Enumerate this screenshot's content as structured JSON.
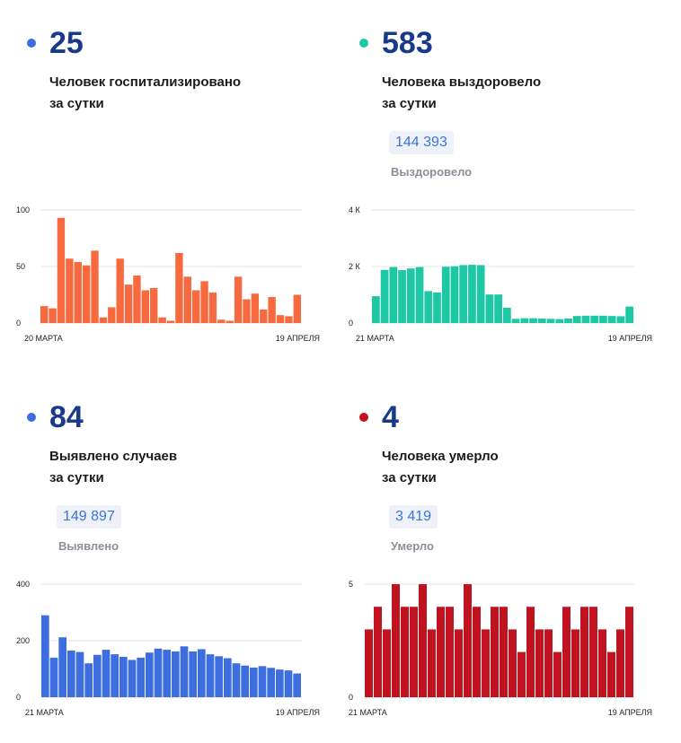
{
  "panels": {
    "hosp": {
      "number": "25",
      "desc_line1": "Человек госпитализировано",
      "desc_line2": "за сутки",
      "dot_color": "#3d6ee0"
    },
    "recov": {
      "number": "583",
      "desc_line1": "Человека выздоровело",
      "desc_line2": "за сутки",
      "total": "144 393",
      "total_label": "Выздоровело",
      "dot_color": "#1ec8a5"
    },
    "cases": {
      "number": "84",
      "desc_line1": "Выявлено случаев",
      "desc_line2": "за сутки",
      "total": "149 897",
      "total_label": "Выявлено",
      "dot_color": "#3d6ee0"
    },
    "deaths": {
      "number": "4",
      "desc_line1": "Человека умерло",
      "desc_line2": "за сутки",
      "total": "3 419",
      "total_label": "Умерло",
      "dot_color": "#c0121f"
    }
  },
  "chart_data": [
    {
      "id": "hosp",
      "type": "bar",
      "color": "#f76a3f",
      "ylim": [
        0,
        100
      ],
      "yticks": [
        "0",
        "50",
        "100"
      ],
      "ytick_values": [
        0,
        50,
        100
      ],
      "x_start": "20 МАРТА",
      "x_end": "19 АПРЕЛЯ",
      "values": [
        15,
        13,
        93,
        57,
        54,
        51,
        64,
        5,
        14,
        57,
        34,
        42,
        29,
        31,
        5,
        2,
        62,
        41,
        29,
        37,
        27,
        3,
        2,
        41,
        21,
        26,
        12,
        23,
        7,
        6,
        25
      ]
    },
    {
      "id": "recov",
      "type": "bar",
      "color": "#1ec8a5",
      "ylim": [
        0,
        4000
      ],
      "yticks": [
        "0",
        "2 К",
        "4 К"
      ],
      "ytick_values": [
        0,
        2000,
        4000
      ],
      "x_start": "21 МАРТА",
      "x_end": "19 АПРЕЛЯ",
      "values": [
        950,
        1880,
        1980,
        1870,
        1930,
        1980,
        1130,
        1080,
        1990,
        2010,
        2050,
        2060,
        2050,
        1010,
        1010,
        540,
        150,
        170,
        170,
        160,
        150,
        140,
        160,
        250,
        260,
        260,
        260,
        250,
        240,
        583
      ]
    },
    {
      "id": "cases",
      "type": "bar",
      "color": "#3d6ee0",
      "ylim": [
        0,
        400
      ],
      "yticks": [
        "0",
        "200",
        "400"
      ],
      "ytick_values": [
        0,
        200,
        400
      ],
      "x_start": "21 МАРТА",
      "x_end": "19 АПРЕЛЯ",
      "values": [
        290,
        140,
        212,
        165,
        160,
        120,
        150,
        168,
        152,
        143,
        132,
        140,
        158,
        172,
        168,
        162,
        180,
        162,
        170,
        152,
        145,
        138,
        120,
        112,
        105,
        110,
        104,
        98,
        95,
        84
      ]
    },
    {
      "id": "deaths",
      "type": "bar",
      "color": "#c0121f",
      "ylim": [
        0,
        5
      ],
      "yticks": [
        "0",
        "5"
      ],
      "ytick_values": [
        0,
        5
      ],
      "x_start": "21 МАРТА",
      "x_end": "19 АПРЕЛЯ",
      "values": [
        3,
        4,
        3,
        5,
        4,
        4,
        5,
        3,
        4,
        4,
        3,
        5,
        4,
        3,
        4,
        4,
        3,
        2,
        4,
        3,
        3,
        2,
        4,
        3,
        4,
        4,
        3,
        2,
        3,
        4
      ]
    }
  ]
}
